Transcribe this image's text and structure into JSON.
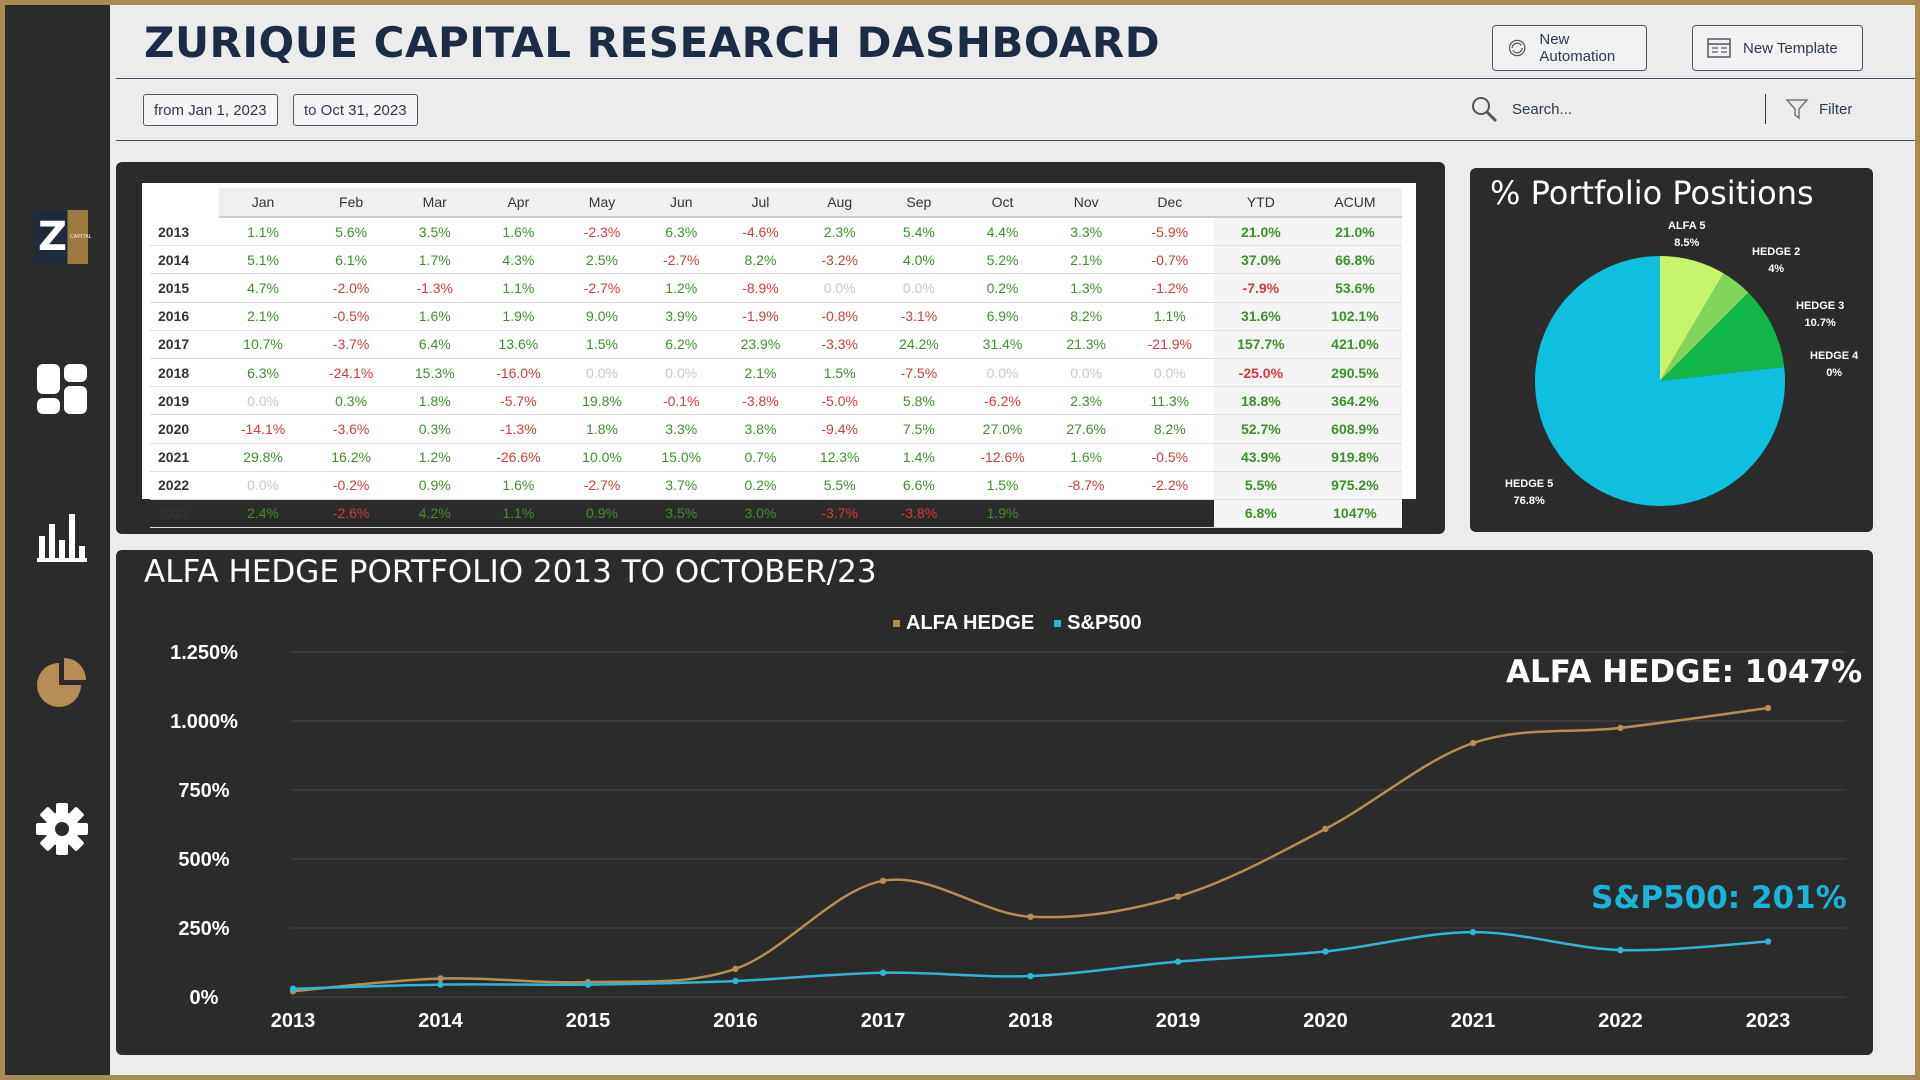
{
  "header": {
    "title": "ZURIQUE CAPITAL RESEARCH DASHBOARD",
    "new_automation": "New Automation",
    "new_template": "New Template",
    "date_from": "from Jan 1, 2023",
    "date_to": "to Oct 31, 2023",
    "search_placeholder": "Search...",
    "filter_label": "Filter"
  },
  "sidebar": {
    "logo_letter": "Z",
    "logo_caption": "CAPITAL",
    "items": [
      "dashboard-icon",
      "bar-chart-icon",
      "pie-chart-icon",
      "gear-icon"
    ]
  },
  "table": {
    "columns": [
      "Jan",
      "Feb",
      "Mar",
      "Apr",
      "May",
      "Jun",
      "Jul",
      "Aug",
      "Sep",
      "Oct",
      "Nov",
      "Dec",
      "YTD",
      "ACUM"
    ],
    "rows": [
      {
        "year": "2013",
        "cells": [
          "1.1%",
          "5.6%",
          "3.5%",
          "1.6%",
          "-2.3%",
          "6.3%",
          "-4.6%",
          "2.3%",
          "5.4%",
          "4.4%",
          "3.3%",
          "-5.9%",
          "21.0%",
          "21.0%"
        ]
      },
      {
        "year": "2014",
        "cells": [
          "5.1%",
          "6.1%",
          "1.7%",
          "4.3%",
          "2.5%",
          "-2.7%",
          "8.2%",
          "-3.2%",
          "4.0%",
          "5.2%",
          "2.1%",
          "-0.7%",
          "37.0%",
          "66.8%"
        ]
      },
      {
        "year": "2015",
        "cells": [
          "4.7%",
          "-2.0%",
          "-1.3%",
          "1.1%",
          "-2.7%",
          "1.2%",
          "-8.9%",
          "0.0%",
          "0.0%",
          "0.2%",
          "1.3%",
          "-1.2%",
          "-7.9%",
          "53.6%"
        ]
      },
      {
        "year": "2016",
        "cells": [
          "2.1%",
          "-0.5%",
          "1.6%",
          "1.9%",
          "9.0%",
          "3.9%",
          "-1.9%",
          "-0.8%",
          "-3.1%",
          "6.9%",
          "8.2%",
          "1.1%",
          "31.6%",
          "102.1%"
        ]
      },
      {
        "year": "2017",
        "cells": [
          "10.7%",
          "-3.7%",
          "6.4%",
          "13.6%",
          "1.5%",
          "6.2%",
          "23.9%",
          "-3.3%",
          "24.2%",
          "31.4%",
          "21.3%",
          "-21.9%",
          "157.7%",
          "421.0%"
        ]
      },
      {
        "year": "2018",
        "cells": [
          "6.3%",
          "-24.1%",
          "15.3%",
          "-16.0%",
          "0.0%",
          "0.0%",
          "2.1%",
          "1.5%",
          "-7.5%",
          "0.0%",
          "0.0%",
          "0.0%",
          "-25.0%",
          "290.5%"
        ]
      },
      {
        "year": "2019",
        "cells": [
          "0.0%",
          "0.3%",
          "1.8%",
          "-5.7%",
          "19.8%",
          "-0.1%",
          "-3.8%",
          "-5.0%",
          "5.8%",
          "-6.2%",
          "2.3%",
          "11.3%",
          "18.8%",
          "364.2%"
        ]
      },
      {
        "year": "2020",
        "cells": [
          "-14.1%",
          "-3.6%",
          "0.3%",
          "-1.3%",
          "1.8%",
          "3.3%",
          "3.8%",
          "-9.4%",
          "7.5%",
          "27.0%",
          "27.6%",
          "8.2%",
          "52.7%",
          "608.9%"
        ]
      },
      {
        "year": "2021",
        "cells": [
          "29.8%",
          "16.2%",
          "1.2%",
          "-26.6%",
          "10.0%",
          "15.0%",
          "0.7%",
          "12.3%",
          "1.4%",
          "-12.6%",
          "1.6%",
          "-0.5%",
          "43.9%",
          "919.8%"
        ]
      },
      {
        "year": "2022",
        "cells": [
          "0.0%",
          "-0.2%",
          "0.9%",
          "1.6%",
          "-2.7%",
          "3.7%",
          "0.2%",
          "5.5%",
          "6.6%",
          "1.5%",
          "-8.7%",
          "-2.2%",
          "5.5%",
          "975.2%"
        ]
      },
      {
        "year": "2023",
        "cells": [
          "2.4%",
          "-2.6%",
          "4.2%",
          "1.1%",
          "0.9%",
          "3.5%",
          "3.0%",
          "-3.7%",
          "-3.8%",
          "1.9%",
          "",
          "",
          "6.8%",
          "1047%"
        ]
      }
    ],
    "colors": {
      "positive": "#3f8f2c",
      "negative": "#d23b3b",
      "zero": "#c9c9c9"
    }
  },
  "pie": {
    "title": "% Portfolio Positions",
    "slices": [
      {
        "name": "ALFA 5",
        "label": "8.5%",
        "value": 8.5,
        "color": "#c6f46c"
      },
      {
        "name": "HEDGE 2",
        "label": "4%",
        "value": 4.0,
        "color": "#7fd65a"
      },
      {
        "name": "HEDGE 3",
        "label": "10.7%",
        "value": 10.7,
        "color": "#12b748"
      },
      {
        "name": "HEDGE 4",
        "label": "0%",
        "value": 0.0,
        "color": "#0e9a9a"
      },
      {
        "name": "HEDGE 5",
        "label": "76.8%",
        "value": 76.8,
        "color": "#0fbfdf"
      }
    ]
  },
  "chart_data": {
    "type": "line",
    "title": "ALFA HEDGE PORTFOLIO 2013 TO OCTOBER/23",
    "x": [
      "2013",
      "2014",
      "2015",
      "2016",
      "2017",
      "2018",
      "2019",
      "2020",
      "2021",
      "2022",
      "2023"
    ],
    "ytick_labels": [
      "0%",
      "250%",
      "500%",
      "750%",
      "1.000%",
      "1.250%"
    ],
    "ytick_values": [
      0,
      250,
      500,
      750,
      1000,
      1250
    ],
    "ylim": [
      0,
      1250
    ],
    "grid": true,
    "legend_position": "top-center",
    "series": [
      {
        "name": "ALFA HEDGE",
        "color": "#b58d55",
        "values": [
          21,
          67,
          54,
          102,
          421,
          291,
          364,
          609,
          920,
          975,
          1047
        ]
      },
      {
        "name": "S&P500",
        "color": "#2fb6d6",
        "values": [
          30,
          45,
          45,
          58,
          88,
          76,
          128,
          165,
          235,
          170,
          201
        ]
      }
    ],
    "annotations": [
      {
        "text": "ALFA HEDGE: 1047%",
        "color": "#ffffff"
      },
      {
        "text": "S&P500: 201%",
        "color": "#19b5d9"
      }
    ]
  }
}
